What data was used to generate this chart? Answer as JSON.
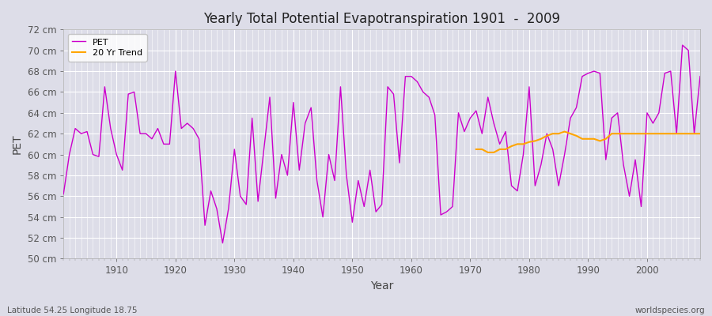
{
  "title": "Yearly Total Potential Evapotranspiration 1901  -  2009",
  "xlabel": "Year",
  "ylabel": "PET",
  "subtitle_left": "Latitude 54.25 Longitude 18.75",
  "subtitle_right": "worldspecies.org",
  "ylim": [
    50,
    72
  ],
  "pet_color": "#CC00CC",
  "trend_color": "#FFA500",
  "bg_color": "#DDDDE8",
  "grid_color": "#FFFFFF",
  "legend_bg": "#FFFFFF",
  "pet_data_years": [
    1901,
    1902,
    1903,
    1904,
    1905,
    1906,
    1907,
    1908,
    1909,
    1910,
    1911,
    1912,
    1913,
    1914,
    1915,
    1916,
    1917,
    1918,
    1919,
    1920,
    1921,
    1922,
    1923,
    1924,
    1925,
    1926,
    1927,
    1928,
    1929,
    1930,
    1931,
    1932,
    1933,
    1934,
    1935,
    1936,
    1937,
    1938,
    1939,
    1940,
    1941,
    1942,
    1943,
    1944,
    1945,
    1946,
    1947,
    1948,
    1949,
    1950,
    1951,
    1952,
    1953,
    1954,
    1955,
    1956,
    1957,
    1958,
    1959,
    1960,
    1961,
    1962,
    1963,
    1964,
    1965,
    1966,
    1967,
    1968,
    1969,
    1970,
    1971,
    1972,
    1973,
    1974,
    1975,
    1976,
    1977,
    1978,
    1979,
    1980,
    1981,
    1982,
    1983,
    1984,
    1985,
    1986,
    1987,
    1988,
    1989,
    1990,
    1991,
    1992,
    1993,
    1994,
    1995,
    1996,
    1997,
    1998,
    1999,
    2000,
    2001,
    2002,
    2003,
    2004,
    2005,
    2006,
    2007,
    2008,
    2009
  ],
  "pet_data_values": [
    56.2,
    60.0,
    62.5,
    62.0,
    62.2,
    60.0,
    59.8,
    66.5,
    62.5,
    60.0,
    58.5,
    65.8,
    66.0,
    62.0,
    62.0,
    61.5,
    62.5,
    61.0,
    61.0,
    68.0,
    62.5,
    63.0,
    62.5,
    61.5,
    53.2,
    56.5,
    54.8,
    51.5,
    54.8,
    60.5,
    56.0,
    55.2,
    63.5,
    55.5,
    60.5,
    65.5,
    55.8,
    60.0,
    58.0,
    65.0,
    58.5,
    63.0,
    64.5,
    57.5,
    54.0,
    60.0,
    57.5,
    66.5,
    58.0,
    53.5,
    57.5,
    55.0,
    58.5,
    54.5,
    55.2,
    66.5,
    65.8,
    59.2,
    67.5,
    67.5,
    67.0,
    66.0,
    65.5,
    63.8,
    54.2,
    54.5,
    55.0,
    64.0,
    62.2,
    63.5,
    64.2,
    62.0,
    65.5,
    63.0,
    61.0,
    62.2,
    57.0,
    56.5,
    60.0,
    66.5,
    57.0,
    59.0,
    62.0,
    60.5,
    57.0,
    60.0,
    63.5,
    64.5,
    67.5,
    67.8,
    68.0,
    67.8,
    59.5,
    63.5,
    64.0,
    59.0,
    56.0,
    59.5,
    55.0,
    64.0,
    63.0,
    64.0,
    67.8,
    68.0,
    62.0,
    70.5,
    70.0,
    62.0,
    67.5
  ],
  "trend_data_years": [
    1971,
    1972,
    1973,
    1974,
    1975,
    1976,
    1977,
    1978,
    1979,
    1980,
    1981,
    1982,
    1983,
    1984,
    1985,
    1986,
    1987,
    1988,
    1989,
    1990,
    1991,
    1992,
    1993,
    1994,
    1995,
    1996,
    1997,
    1998,
    1999,
    2000,
    2001,
    2002,
    2003,
    2004,
    2005,
    2006,
    2007,
    2008,
    2009
  ],
  "trend_data_values": [
    60.5,
    60.5,
    60.2,
    60.2,
    60.5,
    60.5,
    60.8,
    61.0,
    61.0,
    61.2,
    61.3,
    61.5,
    61.8,
    62.0,
    62.0,
    62.2,
    62.0,
    61.8,
    61.5,
    61.5,
    61.5,
    61.3,
    61.5,
    62.0,
    62.0,
    62.0,
    62.0,
    62.0,
    62.0,
    62.0,
    62.0,
    62.0,
    62.0,
    62.0,
    62.0,
    62.0,
    62.0,
    62.0,
    62.0
  ]
}
